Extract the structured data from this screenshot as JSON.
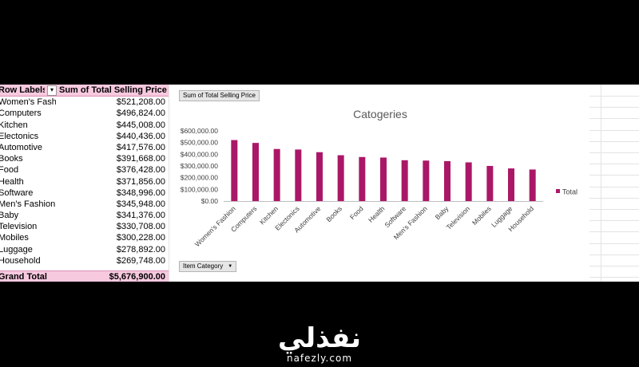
{
  "pivot": {
    "header": {
      "row_labels": "Row Labels",
      "sum_label": "Sum of Total Selling Price"
    },
    "rows": [
      {
        "label": "Women's Fashion",
        "value": "$521,208.00"
      },
      {
        "label": "Computers",
        "value": "$496,824.00"
      },
      {
        "label": "Kitchen",
        "value": "$445,008.00"
      },
      {
        "label": "Electonics",
        "value": "$440,436.00"
      },
      {
        "label": "Automotive",
        "value": "$417,576.00"
      },
      {
        "label": "Books",
        "value": "$391,668.00"
      },
      {
        "label": "Food",
        "value": "$376,428.00"
      },
      {
        "label": "Health",
        "value": "$371,856.00"
      },
      {
        "label": "Software",
        "value": "$348,996.00"
      },
      {
        "label": "Men's Fashion",
        "value": "$345,948.00"
      },
      {
        "label": "Baby",
        "value": "$341,376.00"
      },
      {
        "label": "Television",
        "value": "$330,708.00"
      },
      {
        "label": "Mobiles",
        "value": "$300,228.00"
      },
      {
        "label": "Luggage",
        "value": "$278,892.00"
      },
      {
        "label": "Household",
        "value": "$269,748.00"
      }
    ],
    "grand_total": {
      "label": "Grand Total",
      "value": "$5,676,900.00"
    }
  },
  "chart_field_button": "Sum of Total Selling Price",
  "axis_field_button": "Item Category",
  "colors": {
    "bar": "#ab1767",
    "header_fill": "#f7c9df"
  },
  "chart_data": {
    "type": "bar",
    "title": "Catogeries",
    "categories": [
      "Women's Fashion",
      "Computers",
      "Kitchen",
      "Electonics",
      "Automotive",
      "Books",
      "Food",
      "Health",
      "Software",
      "Men's Fashion",
      "Baby",
      "Television",
      "Mobiles",
      "Luggage",
      "Household"
    ],
    "series": [
      {
        "name": "Total",
        "values": [
          521208,
          496824,
          445008,
          440436,
          417576,
          391668,
          376428,
          371856,
          348996,
          345948,
          341376,
          330708,
          300228,
          278892,
          269748
        ]
      }
    ],
    "ylim": [
      0,
      600000
    ],
    "yticks": [
      0,
      100000,
      200000,
      300000,
      400000,
      500000,
      600000
    ],
    "ytick_labels": [
      "$0.00",
      "$100,000.00",
      "$200,000.00",
      "$300,000.00",
      "$400,000.00",
      "$500,000.00",
      "$600,000.00"
    ],
    "xlabel": "",
    "ylabel": "",
    "legend": "right",
    "grid": false
  },
  "footer": {
    "brand_arabic": "نفذلي",
    "brand_url": "nafezly.com"
  }
}
